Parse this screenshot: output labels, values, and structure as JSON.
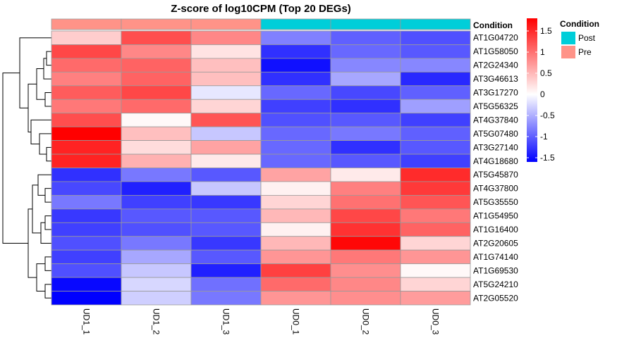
{
  "chart_data": {
    "type": "heatmap",
    "title": "Z-score of log10CPM (Top 20 DEGs)",
    "columns": [
      "UD1_1",
      "UD1_2",
      "UD1_3",
      "UD0_1",
      "UD0_2",
      "UD0_3"
    ],
    "column_condition": [
      "Pre",
      "Pre",
      "Pre",
      "Post",
      "Post",
      "Post"
    ],
    "rows": [
      "AT1G04720",
      "AT1G58050",
      "AT2G24340",
      "AT3G46613",
      "AT3G17270",
      "AT5G56325",
      "AT4G37840",
      "AT5G07480",
      "AT3G27140",
      "AT4G18680",
      "AT5G45870",
      "AT4G37800",
      "AT5G35550",
      "AT1G54950",
      "AT1G16400",
      "AT2G20605",
      "AT1G74140",
      "AT1G69530",
      "AT5G24210",
      "AT2G05520"
    ],
    "values": [
      [
        0.35,
        1.25,
        0.85,
        -0.8,
        -1.0,
        -1.1
      ],
      [
        1.3,
        0.85,
        0.2,
        -1.3,
        -0.95,
        -1.05
      ],
      [
        1.05,
        1.1,
        0.45,
        -1.5,
        -0.75,
        -0.75
      ],
      [
        0.9,
        1.1,
        0.45,
        -1.3,
        -0.55,
        -1.35
      ],
      [
        1.15,
        1.3,
        -0.15,
        -0.95,
        -1.15,
        -1.0
      ],
      [
        0.95,
        1.05,
        0.3,
        -1.2,
        -1.3,
        -0.6
      ],
      [
        1.25,
        0.05,
        1.2,
        -1.1,
        -1.05,
        -1.2
      ],
      [
        1.8,
        0.45,
        -0.35,
        -0.95,
        -0.85,
        -1.0
      ],
      [
        1.55,
        0.25,
        0.65,
        -0.95,
        -1.3,
        -1.05
      ],
      [
        1.55,
        0.55,
        0.15,
        -0.95,
        -1.05,
        -1.2
      ],
      [
        -1.3,
        -0.85,
        -1.05,
        0.65,
        0.15,
        1.5
      ],
      [
        -1.15,
        -1.4,
        -0.35,
        0.1,
        0.9,
        1.4
      ],
      [
        -0.85,
        -1.2,
        -1.25,
        0.3,
        1.0,
        1.2
      ],
      [
        -1.25,
        -1.05,
        -1.05,
        0.5,
        1.3,
        0.95
      ],
      [
        -1.2,
        -1.1,
        -1.05,
        0.1,
        1.45,
        1.1
      ],
      [
        -1.1,
        -0.85,
        -1.25,
        0.5,
        1.75,
        0.3
      ],
      [
        -1.2,
        -0.55,
        -1.05,
        0.75,
        0.95,
        0.75
      ],
      [
        -1.1,
        -0.35,
        -1.4,
        1.35,
        0.8,
        0.05
      ],
      [
        -1.55,
        -0.25,
        -0.9,
        1.05,
        0.85,
        0.3
      ],
      [
        -1.6,
        -0.3,
        -0.85,
        0.75,
        0.8,
        0.7
      ]
    ],
    "color_scale": {
      "min_color": "#0000FF",
      "mid_color": "#FFFFFF",
      "max_color": "#FF0000",
      "range": [
        -1.6,
        1.8
      ],
      "ticks": [
        -1.5,
        -1,
        -0.5,
        0,
        0.5,
        1,
        1.5
      ],
      "tick_labels": [
        "-1.5",
        "-1",
        "-0.5",
        "0",
        "0.5",
        "1",
        "1.5"
      ]
    },
    "annotation": {
      "label": "Condition",
      "legend_title": "Condition",
      "levels": [
        {
          "name": "Post",
          "color": "#00CED9"
        },
        {
          "name": "Pre",
          "color": "#FF9388"
        }
      ]
    },
    "row_dendrogram": true,
    "grid_color": "#9A9A9A"
  }
}
